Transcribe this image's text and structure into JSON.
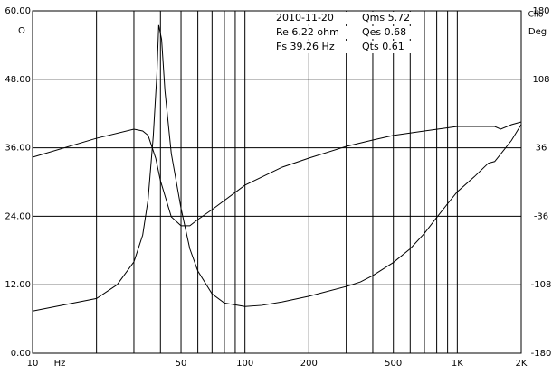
{
  "chart_data": {
    "type": "line",
    "x_scale": "log",
    "grid": true,
    "line_color": "#000000",
    "ylabel": "Ω",
    "y2label": "Deg",
    "corner_label": "Clio",
    "x_unit": "Hz",
    "annotations": [
      "2010-11-20",
      "Qms 5.72",
      "Re 6.22 ohm",
      "Qes 0.68",
      "Fs 39.26 Hz",
      "Qts 0.61"
    ],
    "xlim": [
      10,
      2000
    ],
    "xticks": [
      10,
      50,
      100,
      200,
      500,
      {
        "value": 1000,
        "label": "1K"
      },
      {
        "value": 2000,
        "label": "2K"
      }
    ],
    "minor_xticks": [
      20,
      30,
      40,
      60,
      70,
      80,
      90,
      300,
      400,
      600,
      700,
      800,
      900
    ],
    "ylim": [
      0,
      60
    ],
    "yticks": [
      {
        "value": 0,
        "label": "0.00"
      },
      {
        "value": 12,
        "label": "12.00"
      },
      {
        "value": 24,
        "label": "24.00"
      },
      {
        "value": 36,
        "label": "36.00"
      },
      {
        "value": 48,
        "label": "48.00"
      },
      {
        "value": 60,
        "label": "60.00"
      }
    ],
    "y2lim": [
      -180,
      180
    ],
    "y2ticks": [
      -180,
      -108,
      -36,
      36,
      108,
      180
    ],
    "series": [
      {
        "color": "#000000",
        "x": [
          10,
          20,
          25,
          30,
          33,
          35,
          37,
          38.5,
          39.26,
          40.5,
          42,
          45,
          50,
          55,
          60,
          70,
          80,
          100,
          120,
          150,
          200,
          300,
          350,
          400,
          500,
          600,
          700,
          800,
          900,
          1000,
          1200,
          1400,
          1500,
          1600,
          1800,
          2000
        ],
        "values": [
          7.4,
          9.6,
          12.0,
          16,
          20.7,
          27,
          38,
          49,
          57.5,
          55,
          46,
          35,
          25.4,
          18.3,
          14.4,
          10.4,
          8.8,
          8.2,
          8.4,
          9.0,
          10,
          11.7,
          12.5,
          13.6,
          15.9,
          18.3,
          21,
          23.8,
          26.2,
          28.3,
          30.9,
          33.3,
          33.6,
          34.9,
          37.3,
          40.1
        ]
      },
      {
        "color": "#000000",
        "axis": "y2",
        "x": [
          10,
          20,
          30,
          33,
          35,
          38,
          40,
          45,
          50,
          55,
          60,
          70,
          100,
          150,
          200,
          300,
          400,
          500,
          700,
          1000,
          1500,
          1600,
          1800,
          2000
        ],
        "values": [
          26.1,
          46,
          55.6,
          53.7,
          49,
          25,
          1.4,
          -36.6,
          -46,
          -46,
          -39.4,
          -29,
          -3.3,
          15.7,
          25.2,
          37.5,
          44.2,
          49,
          53.7,
          58.4,
          58.4,
          55.6,
          60.3,
          63.2
        ]
      }
    ]
  }
}
